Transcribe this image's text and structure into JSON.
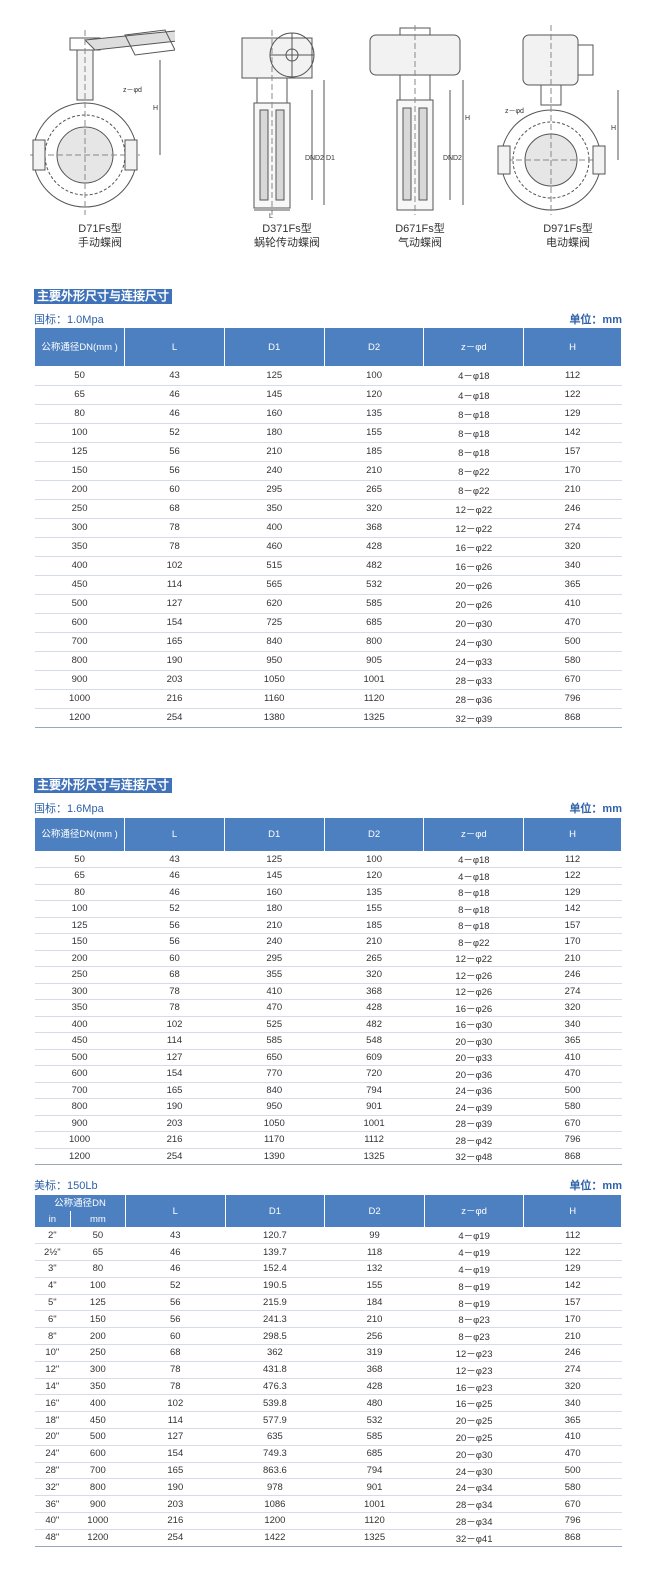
{
  "figures": [
    {
      "model": "D71Fs型",
      "name": "手动蝶阀"
    },
    {
      "model": "D371Fs型",
      "name": "蜗轮传动蝶阀"
    },
    {
      "model": "D671Fs型",
      "name": "气动蝶阀"
    },
    {
      "model": "D971Fs型",
      "name": "电动蝶阀"
    }
  ],
  "dim_labels": {
    "z_d": "z－φd",
    "H": "H",
    "L": "L",
    "DN": "DN",
    "D2": "D2",
    "D1": "D1"
  },
  "section1": {
    "title": "主要外形尺寸与连接尺寸",
    "standard": "国标：1.0Mpa",
    "unit": "单位：mm",
    "headers": [
      "公称通径DN(mm )",
      "L",
      "D1",
      "D2",
      "z－φd",
      "H"
    ],
    "rows": [
      [
        "50",
        "43",
        "125",
        "100",
        "4－φ18",
        "112"
      ],
      [
        "65",
        "46",
        "145",
        "120",
        "4－φ18",
        "122"
      ],
      [
        "80",
        "46",
        "160",
        "135",
        "8－φ18",
        "129"
      ],
      [
        "100",
        "52",
        "180",
        "155",
        "8－φ18",
        "142"
      ],
      [
        "125",
        "56",
        "210",
        "185",
        "8－φ18",
        "157"
      ],
      [
        "150",
        "56",
        "240",
        "210",
        "8－φ22",
        "170"
      ],
      [
        "200",
        "60",
        "295",
        "265",
        "8－φ22",
        "210"
      ],
      [
        "250",
        "68",
        "350",
        "320",
        "12－φ22",
        "246"
      ],
      [
        "300",
        "78",
        "400",
        "368",
        "12－φ22",
        "274"
      ],
      [
        "350",
        "78",
        "460",
        "428",
        "16－φ22",
        "320"
      ],
      [
        "400",
        "102",
        "515",
        "482",
        "16－φ26",
        "340"
      ],
      [
        "450",
        "114",
        "565",
        "532",
        "20－φ26",
        "365"
      ],
      [
        "500",
        "127",
        "620",
        "585",
        "20－φ26",
        "410"
      ],
      [
        "600",
        "154",
        "725",
        "685",
        "20－φ30",
        "470"
      ],
      [
        "700",
        "165",
        "840",
        "800",
        "24－φ30",
        "500"
      ],
      [
        "800",
        "190",
        "950",
        "905",
        "24－φ33",
        "580"
      ],
      [
        "900",
        "203",
        "1050",
        "1001",
        "28－φ33",
        "670"
      ],
      [
        "1000",
        "216",
        "1160",
        "1120",
        "28－φ36",
        "796"
      ],
      [
        "1200",
        "254",
        "1380",
        "1325",
        "32－φ39",
        "868"
      ]
    ]
  },
  "section2": {
    "title": "主要外形尺寸与连接尺寸",
    "standard": "国标：1.6Mpa",
    "unit": "单位：mm",
    "headers": [
      "公称通径DN(mm )",
      "L",
      "D1",
      "D2",
      "z－φd",
      "H"
    ],
    "rows": [
      [
        "50",
        "43",
        "125",
        "100",
        "4－φ18",
        "112"
      ],
      [
        "65",
        "46",
        "145",
        "120",
        "4－φ18",
        "122"
      ],
      [
        "80",
        "46",
        "160",
        "135",
        "8－φ18",
        "129"
      ],
      [
        "100",
        "52",
        "180",
        "155",
        "8－φ18",
        "142"
      ],
      [
        "125",
        "56",
        "210",
        "185",
        "8－φ18",
        "157"
      ],
      [
        "150",
        "56",
        "240",
        "210",
        "8－φ22",
        "170"
      ],
      [
        "200",
        "60",
        "295",
        "265",
        "12－φ22",
        "210"
      ],
      [
        "250",
        "68",
        "355",
        "320",
        "12－φ26",
        "246"
      ],
      [
        "300",
        "78",
        "410",
        "368",
        "12－φ26",
        "274"
      ],
      [
        "350",
        "78",
        "470",
        "428",
        "16－φ26",
        "320"
      ],
      [
        "400",
        "102",
        "525",
        "482",
        "16－φ30",
        "340"
      ],
      [
        "450",
        "114",
        "585",
        "548",
        "20－φ30",
        "365"
      ],
      [
        "500",
        "127",
        "650",
        "609",
        "20－φ33",
        "410"
      ],
      [
        "600",
        "154",
        "770",
        "720",
        "20－φ36",
        "470"
      ],
      [
        "700",
        "165",
        "840",
        "794",
        "24－φ36",
        "500"
      ],
      [
        "800",
        "190",
        "950",
        "901",
        "24－φ39",
        "580"
      ],
      [
        "900",
        "203",
        "1050",
        "1001",
        "28－φ39",
        "670"
      ],
      [
        "1000",
        "216",
        "1170",
        "1112",
        "28－φ42",
        "796"
      ],
      [
        "1200",
        "254",
        "1390",
        "1325",
        "32－φ48",
        "868"
      ]
    ]
  },
  "section3": {
    "standard": "美标：150Lb",
    "unit": "单位：mm",
    "header_group": "公称通径DN",
    "sub_headers": [
      "in",
      "mm"
    ],
    "headers": [
      "L",
      "D1",
      "D2",
      "z－φd",
      "H"
    ],
    "rows": [
      [
        "2\"",
        "50",
        "43",
        "120.7",
        "99",
        "4－φ19",
        "112"
      ],
      [
        "2½\"",
        "65",
        "46",
        "139.7",
        "118",
        "4－φ19",
        "122"
      ],
      [
        "3\"",
        "80",
        "46",
        "152.4",
        "132",
        "4－φ19",
        "129"
      ],
      [
        "4\"",
        "100",
        "52",
        "190.5",
        "155",
        "8－φ19",
        "142"
      ],
      [
        "5\"",
        "125",
        "56",
        "215.9",
        "184",
        "8－φ19",
        "157"
      ],
      [
        "6\"",
        "150",
        "56",
        "241.3",
        "210",
        "8－φ23",
        "170"
      ],
      [
        "8\"",
        "200",
        "60",
        "298.5",
        "256",
        "8－φ23",
        "210"
      ],
      [
        "10\"",
        "250",
        "68",
        "362",
        "319",
        "12－φ23",
        "246"
      ],
      [
        "12\"",
        "300",
        "78",
        "431.8",
        "368",
        "12－φ23",
        "274"
      ],
      [
        "14\"",
        "350",
        "78",
        "476.3",
        "428",
        "16－φ23",
        "320"
      ],
      [
        "16\"",
        "400",
        "102",
        "539.8",
        "480",
        "16－φ25",
        "340"
      ],
      [
        "18\"",
        "450",
        "114",
        "577.9",
        "532",
        "20－φ25",
        "365"
      ],
      [
        "20\"",
        "500",
        "127",
        "635",
        "585",
        "20－φ25",
        "410"
      ],
      [
        "24\"",
        "600",
        "154",
        "749.3",
        "685",
        "20－φ30",
        "470"
      ],
      [
        "28\"",
        "700",
        "165",
        "863.6",
        "794",
        "24－φ30",
        "500"
      ],
      [
        "32\"",
        "800",
        "190",
        "978",
        "901",
        "24－φ34",
        "580"
      ],
      [
        "36\"",
        "900",
        "203",
        "1086",
        "1001",
        "28－φ34",
        "670"
      ],
      [
        "40\"",
        "1000",
        "216",
        "1200",
        "1120",
        "28－φ34",
        "796"
      ],
      [
        "48\"",
        "1200",
        "254",
        "1422",
        "1325",
        "32－φ41",
        "868"
      ]
    ]
  }
}
